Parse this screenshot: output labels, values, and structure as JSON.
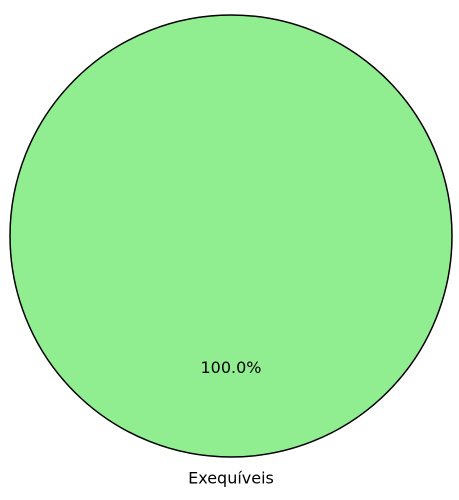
{
  "chart_data": {
    "type": "pie",
    "categories": [
      "Exequíveis"
    ],
    "values": [
      100.0
    ],
    "percent_labels": [
      "100.0%"
    ],
    "colors": [
      "#90ee90"
    ],
    "edge_color": "#000000",
    "title": "",
    "legend": "none"
  }
}
